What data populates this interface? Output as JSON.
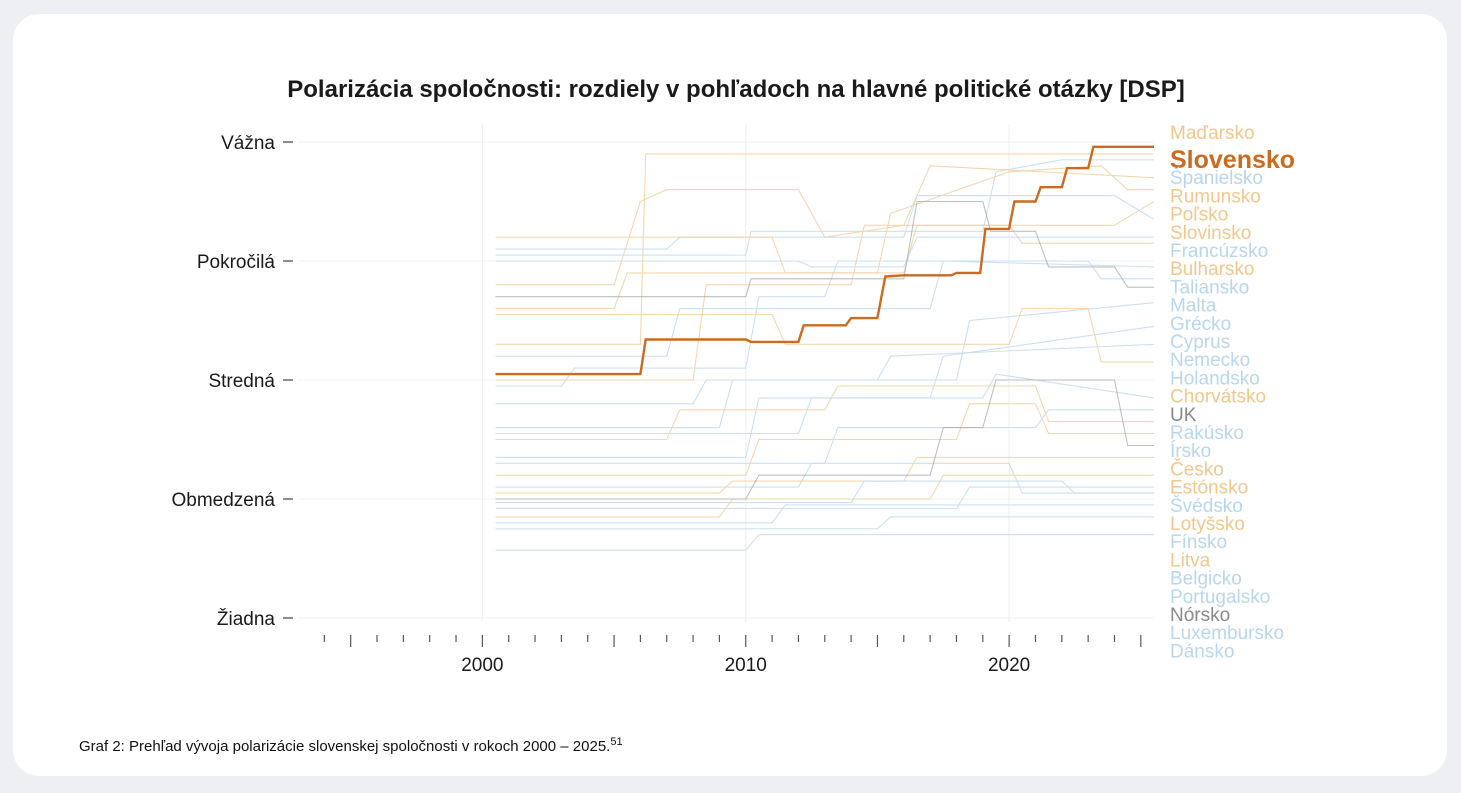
{
  "caption": {
    "text": "Graf 2: Prehľad vývoja polarizácie slovenskej spoločnosti v rokoch 2000 – 2025.",
    "footnote": "51"
  },
  "colors": {
    "highlight": "#cc6a1f",
    "orange_light": "#f3d3a6",
    "blue_light": "#c7ddef",
    "gray": "#a9a9a9",
    "text": "#1a1a1a"
  },
  "chart_data": {
    "type": "line",
    "title": "Polarizácia spoločnosti: rozdiely v pohľadoch na hlavné politické otázky [DSP]",
    "xlabel": "",
    "ylabel": "",
    "xlim": [
      1993,
      2025.5
    ],
    "ylim": [
      0,
      4
    ],
    "x_ticks": [
      2000,
      2010,
      2020
    ],
    "y_levels": [
      "Žiadna",
      "Obmedzená",
      "Stredná",
      "Pokročilá",
      "Vážna"
    ],
    "highlight": "Slovensko",
    "series": [
      {
        "name": "Maďarsko",
        "group": "orange",
        "values": [
          [
            2000.5,
            2.3
          ],
          [
            2006,
            2.3
          ],
          [
            2006.2,
            3.9
          ],
          [
            2025.5,
            3.9
          ]
        ]
      },
      {
        "name": "Slovensko",
        "group": "highlight",
        "values": [
          [
            2000.5,
            2.05
          ],
          [
            2006,
            2.05
          ],
          [
            2006.2,
            2.34
          ],
          [
            2010,
            2.34
          ],
          [
            2010.2,
            2.32
          ],
          [
            2012,
            2.32
          ],
          [
            2012.2,
            2.46
          ],
          [
            2013.8,
            2.46
          ],
          [
            2014,
            2.52
          ],
          [
            2015,
            2.52
          ],
          [
            2015.3,
            2.87
          ],
          [
            2016,
            2.88
          ],
          [
            2017.8,
            2.88
          ],
          [
            2018,
            2.9
          ],
          [
            2018.9,
            2.9
          ],
          [
            2019.1,
            3.27
          ],
          [
            2020,
            3.27
          ],
          [
            2020.2,
            3.5
          ],
          [
            2021,
            3.5
          ],
          [
            2021.2,
            3.62
          ],
          [
            2022,
            3.62
          ],
          [
            2022.2,
            3.78
          ],
          [
            2023,
            3.78
          ],
          [
            2023.2,
            3.96
          ],
          [
            2025.5,
            3.96
          ]
        ]
      },
      {
        "name": "Španielsko",
        "group": "blue",
        "values": [
          [
            2000.5,
            3.05
          ],
          [
            2010,
            3.05
          ],
          [
            2010.2,
            3.25
          ],
          [
            2019,
            3.25
          ],
          [
            2019.5,
            3.75
          ],
          [
            2022,
            3.85
          ],
          [
            2025.5,
            3.85
          ]
        ]
      },
      {
        "name": "Rumunsko",
        "group": "orange",
        "values": [
          [
            2000.5,
            2.8
          ],
          [
            2005,
            2.8
          ],
          [
            2006,
            3.5
          ],
          [
            2007,
            3.6
          ],
          [
            2012,
            3.6
          ],
          [
            2013,
            3.2
          ],
          [
            2016,
            3.3
          ],
          [
            2017,
            3.8
          ],
          [
            2025.5,
            3.7
          ]
        ]
      },
      {
        "name": "Poľsko",
        "group": "orange",
        "values": [
          [
            2000.5,
            2.6
          ],
          [
            2005,
            2.6
          ],
          [
            2005.5,
            2.9
          ],
          [
            2015,
            2.9
          ],
          [
            2015.5,
            3.4
          ],
          [
            2020,
            3.75
          ],
          [
            2023.5,
            3.8
          ],
          [
            2024.5,
            3.6
          ],
          [
            2025.5,
            3.6
          ]
        ]
      },
      {
        "name": "Slovinsko",
        "group": "orange",
        "values": [
          [
            2000.5,
            2.0
          ],
          [
            2008,
            2.0
          ],
          [
            2008.5,
            2.8
          ],
          [
            2014,
            2.8
          ],
          [
            2014.5,
            3.3
          ],
          [
            2024,
            3.3
          ],
          [
            2025.5,
            3.5
          ]
        ]
      },
      {
        "name": "Francúzsko",
        "group": "blue",
        "values": [
          [
            2000.5,
            3.1
          ],
          [
            2007,
            3.1
          ],
          [
            2007.5,
            3.2
          ],
          [
            2016,
            3.2
          ],
          [
            2016.5,
            3.55
          ],
          [
            2024,
            3.55
          ],
          [
            2025.5,
            3.35
          ]
        ]
      },
      {
        "name": "Bulharsko",
        "group": "orange",
        "values": [
          [
            2000.5,
            3.2
          ],
          [
            2011,
            3.2
          ],
          [
            2011.5,
            2.9
          ],
          [
            2016,
            2.9
          ],
          [
            2016.5,
            3.3
          ],
          [
            2020,
            3.3
          ],
          [
            2020.5,
            3.15
          ],
          [
            2025.5,
            3.15
          ]
        ]
      },
      {
        "name": "Taliansko",
        "group": "blue",
        "values": [
          [
            2000.5,
            3.0
          ],
          [
            2012,
            3.0
          ],
          [
            2012.5,
            2.95
          ],
          [
            2016,
            2.95
          ],
          [
            2016.5,
            3.2
          ],
          [
            2025.5,
            3.2
          ]
        ]
      },
      {
        "name": "Malta",
        "group": "blue",
        "values": [
          [
            2000.5,
            2.2
          ],
          [
            2007,
            2.2
          ],
          [
            2007.5,
            2.6
          ],
          [
            2017,
            2.6
          ],
          [
            2017.5,
            3.0
          ],
          [
            2025.5,
            2.95
          ]
        ]
      },
      {
        "name": "Grécko",
        "group": "blue",
        "values": [
          [
            2000.5,
            1.95
          ],
          [
            2003,
            1.95
          ],
          [
            2003.5,
            2.1
          ],
          [
            2010,
            2.1
          ],
          [
            2010.5,
            2.7
          ],
          [
            2013,
            2.7
          ],
          [
            2013.5,
            3.0
          ],
          [
            2023,
            3.0
          ],
          [
            2023.5,
            2.85
          ],
          [
            2025.5,
            2.85
          ]
        ]
      },
      {
        "name": "Cyprus",
        "group": "blue",
        "values": [
          [
            2000.5,
            1.6
          ],
          [
            2009,
            1.6
          ],
          [
            2009.5,
            2.0
          ],
          [
            2018,
            2.0
          ],
          [
            2018.5,
            2.5
          ],
          [
            2025.5,
            2.65
          ]
        ]
      },
      {
        "name": "Nemecko",
        "group": "blue",
        "values": [
          [
            2000.5,
            1.35
          ],
          [
            2010,
            1.35
          ],
          [
            2010.5,
            1.85
          ],
          [
            2017,
            1.85
          ],
          [
            2017.5,
            2.2
          ],
          [
            2025.5,
            2.45
          ]
        ]
      },
      {
        "name": "Holandsko",
        "group": "blue",
        "values": [
          [
            2000.5,
            1.8
          ],
          [
            2008,
            1.8
          ],
          [
            2008.5,
            2.0
          ],
          [
            2015,
            2.0
          ],
          [
            2015.5,
            2.2
          ],
          [
            2025.5,
            2.3
          ]
        ]
      },
      {
        "name": "Chorvátsko",
        "group": "orange",
        "values": [
          [
            2000.5,
            2.55
          ],
          [
            2011,
            2.55
          ],
          [
            2011.5,
            2.3
          ],
          [
            2020,
            2.3
          ],
          [
            2020.5,
            2.6
          ],
          [
            2023,
            2.6
          ],
          [
            2023.5,
            2.15
          ],
          [
            2025.5,
            2.15
          ]
        ]
      },
      {
        "name": "UK",
        "group": "gray",
        "values": [
          [
            2000.5,
            2.7
          ],
          [
            2010,
            2.7
          ],
          [
            2010.2,
            2.85
          ],
          [
            2016,
            2.85
          ],
          [
            2016.5,
            3.5
          ],
          [
            2019,
            3.5
          ],
          [
            2019.3,
            3.25
          ],
          [
            2021,
            3.25
          ],
          [
            2021.5,
            2.95
          ],
          [
            2024,
            2.95
          ],
          [
            2024.5,
            2.78
          ],
          [
            2025.5,
            2.78
          ]
        ]
      },
      {
        "name": "Rakúsko",
        "group": "blue",
        "values": [
          [
            2000.5,
            1.55
          ],
          [
            2012,
            1.55
          ],
          [
            2012.5,
            1.85
          ],
          [
            2019,
            1.85
          ],
          [
            2019.5,
            2.05
          ],
          [
            2025.5,
            1.85
          ]
        ]
      },
      {
        "name": "Írsko",
        "group": "blue",
        "values": [
          [
            2000.5,
            1.3
          ],
          [
            2013,
            1.3
          ],
          [
            2013.5,
            1.6
          ],
          [
            2021,
            1.6
          ],
          [
            2021.5,
            1.75
          ],
          [
            2025.5,
            1.75
          ]
        ]
      },
      {
        "name": "Česko",
        "group": "orange",
        "values": [
          [
            2000.5,
            1.5
          ],
          [
            2007,
            1.5
          ],
          [
            2007.5,
            1.75
          ],
          [
            2013,
            1.75
          ],
          [
            2013.5,
            1.95
          ],
          [
            2021,
            1.95
          ],
          [
            2021.5,
            1.65
          ],
          [
            2025.5,
            1.65
          ]
        ]
      },
      {
        "name": "Estónsko",
        "group": "orange",
        "values": [
          [
            2000.5,
            1.2
          ],
          [
            2010,
            1.2
          ],
          [
            2010.5,
            1.5
          ],
          [
            2018,
            1.5
          ],
          [
            2018.5,
            1.8
          ],
          [
            2021,
            1.8
          ],
          [
            2021.5,
            1.55
          ],
          [
            2025.5,
            1.55
          ]
        ]
      },
      {
        "name": "Švédsko",
        "group": "blue",
        "values": [
          [
            2000.5,
            1.1
          ],
          [
            2012,
            1.1
          ],
          [
            2012.5,
            1.3
          ],
          [
            2020,
            1.3
          ],
          [
            2020.5,
            1.05
          ],
          [
            2025.5,
            1.05
          ]
        ]
      },
      {
        "name": "Lotyšsko",
        "group": "orange",
        "values": [
          [
            2000.5,
            1.05
          ],
          [
            2009,
            1.05
          ],
          [
            2009.5,
            1.15
          ],
          [
            2016,
            1.15
          ],
          [
            2016.5,
            1.35
          ],
          [
            2025.5,
            1.35
          ]
        ]
      },
      {
        "name": "Fínsko",
        "group": "blue",
        "values": [
          [
            2000.5,
            0.97
          ],
          [
            2014,
            0.97
          ],
          [
            2014.5,
            1.15
          ],
          [
            2022,
            1.15
          ],
          [
            2022.5,
            1.05
          ],
          [
            2025.5,
            1.05
          ]
        ]
      },
      {
        "name": "Litva",
        "group": "orange",
        "values": [
          [
            2000.5,
            0.85
          ],
          [
            2009,
            0.85
          ],
          [
            2009.5,
            1.0
          ],
          [
            2017,
            1.0
          ],
          [
            2017.5,
            1.2
          ],
          [
            2025.5,
            1.2
          ]
        ]
      },
      {
        "name": "Belgicko",
        "group": "blue",
        "values": [
          [
            2000.5,
            0.92
          ],
          [
            2018,
            0.92
          ],
          [
            2018.5,
            1.1
          ],
          [
            2025.5,
            1.1
          ]
        ]
      },
      {
        "name": "Portugalsko",
        "group": "blue",
        "values": [
          [
            2000.5,
            0.8
          ],
          [
            2011,
            0.8
          ],
          [
            2011.5,
            0.95
          ],
          [
            2025.5,
            0.95
          ]
        ]
      },
      {
        "name": "Nórsko",
        "group": "gray",
        "values": [
          [
            2000.5,
            1.0
          ],
          [
            2010,
            1.0
          ],
          [
            2010.5,
            1.2
          ],
          [
            2017,
            1.2
          ],
          [
            2017.5,
            1.6
          ],
          [
            2019,
            1.6
          ],
          [
            2019.5,
            2.0
          ],
          [
            2024,
            2.0
          ],
          [
            2024.5,
            1.45
          ],
          [
            2025.5,
            1.45
          ]
        ]
      },
      {
        "name": "Luxembursko",
        "group": "blue",
        "values": [
          [
            2000.5,
            0.75
          ],
          [
            2015,
            0.75
          ],
          [
            2015.5,
            0.85
          ],
          [
            2025.5,
            0.85
          ]
        ]
      },
      {
        "name": "Dánsko",
        "group": "blue",
        "values": [
          [
            2000.5,
            0.57
          ],
          [
            2010,
            0.57
          ],
          [
            2010.5,
            0.7
          ],
          [
            2025.5,
            0.7
          ]
        ]
      }
    ]
  }
}
